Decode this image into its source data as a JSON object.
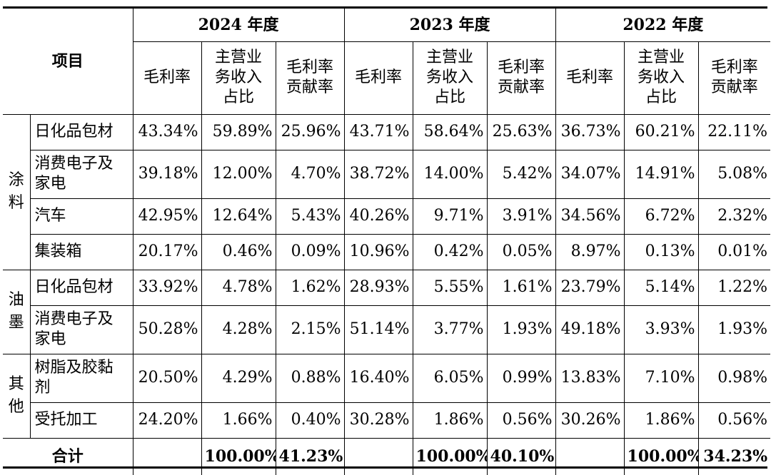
{
  "header": {
    "item_label": "项目",
    "years": [
      "2024 年度",
      "2023 年度",
      "2022 年度"
    ],
    "subcols": [
      "毛利率",
      "主营业\n务收入\n占比",
      "毛利率\n贡献率"
    ]
  },
  "groups": [
    {
      "name": "涂\n料",
      "rows": [
        {
          "name": "日化品包材",
          "v": [
            "43.34%",
            "59.89%",
            "25.96%",
            "43.71%",
            "58.64%",
            "25.63%",
            "36.73%",
            "60.21%",
            "22.11%"
          ]
        },
        {
          "name": "消费电子及\n家电",
          "v": [
            "39.18%",
            "12.00%",
            "4.70%",
            "38.72%",
            "14.00%",
            "5.42%",
            "34.07%",
            "14.91%",
            "5.08%"
          ]
        },
        {
          "name": "汽车",
          "v": [
            "42.95%",
            "12.64%",
            "5.43%",
            "40.26%",
            "9.71%",
            "3.91%",
            "34.56%",
            "6.72%",
            "2.32%"
          ]
        },
        {
          "name": "集装箱",
          "v": [
            "20.17%",
            "0.46%",
            "0.09%",
            "10.96%",
            "0.42%",
            "0.05%",
            "8.97%",
            "0.13%",
            "0.01%"
          ]
        }
      ]
    },
    {
      "name": "油\n墨",
      "rows": [
        {
          "name": "日化品包材",
          "v": [
            "33.92%",
            "4.78%",
            "1.62%",
            "28.93%",
            "5.55%",
            "1.61%",
            "23.79%",
            "5.14%",
            "1.22%"
          ]
        },
        {
          "name": "消费电子及\n家电",
          "v": [
            "50.28%",
            "4.28%",
            "2.15%",
            "51.14%",
            "3.77%",
            "1.93%",
            "49.18%",
            "3.93%",
            "1.93%"
          ]
        }
      ]
    },
    {
      "name": "其\n他",
      "rows": [
        {
          "name": "树脂及胶黏\n剂",
          "v": [
            "20.50%",
            "4.29%",
            "0.88%",
            "16.40%",
            "6.05%",
            "0.99%",
            "13.83%",
            "7.10%",
            "0.98%"
          ]
        },
        {
          "name": "受托加工",
          "v": [
            "24.20%",
            "1.66%",
            "0.40%",
            "30.28%",
            "1.86%",
            "0.56%",
            "30.26%",
            "1.86%",
            "0.56%"
          ]
        }
      ]
    }
  ],
  "total": {
    "label": "合计",
    "v": [
      "",
      "100.00%",
      "41.23%",
      "",
      "100.00%",
      "40.10%",
      "",
      "100.00%",
      "34.23%"
    ]
  }
}
